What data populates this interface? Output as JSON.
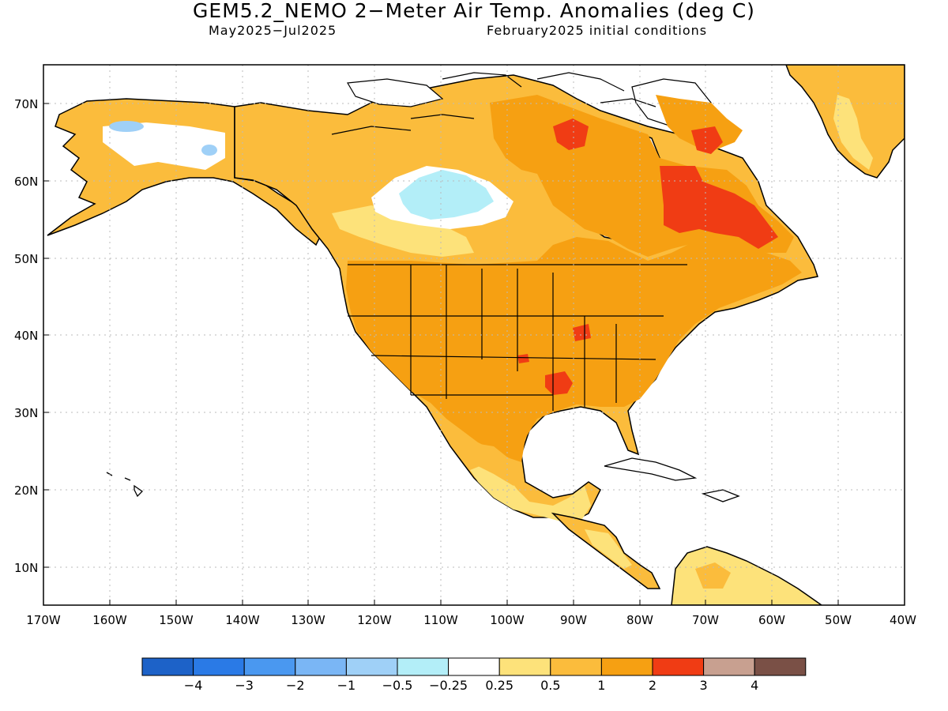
{
  "title": "GEM5.2_NEMO 2−Meter Air Temp. Anomalies (deg C)",
  "subtitle_left": "May2025−Jul2025",
  "subtitle_right": "February2025 initial conditions",
  "lat_labels": [
    "70N",
    "60N",
    "50N",
    "40N",
    "30N",
    "20N",
    "10N"
  ],
  "lon_labels": [
    "170W",
    "160W",
    "150W",
    "140W",
    "130W",
    "120W",
    "110W",
    "100W",
    "90W",
    "80W",
    "70W",
    "60W",
    "50W",
    "40W"
  ],
  "colorbar": {
    "colors": [
      "#1d62c8",
      "#2a7ae6",
      "#4a98f0",
      "#7ab6f5",
      "#9fd0f7",
      "#b3eef8",
      "#ffffff",
      "#fde27a",
      "#fbbc3c",
      "#f6a012",
      "#f03c14",
      "#c8a090",
      "#7a5046"
    ],
    "labels": [
      "−4",
      "−3",
      "−2",
      "−1",
      "−0.5",
      "−0.25",
      "0.25",
      "0.5",
      "1",
      "2",
      "3",
      "4"
    ]
  },
  "map_colors": {
    "ocean": "#ffffff",
    "warm_05": "#fde27a",
    "warm_1": "#fbbc3c",
    "warm_2": "#f6a012",
    "warm_3": "#f03c14",
    "cool_025": "#b3eef8",
    "cool_05": "#9fd0f7",
    "coast": "#000000",
    "grid": "#bbbbbb"
  }
}
